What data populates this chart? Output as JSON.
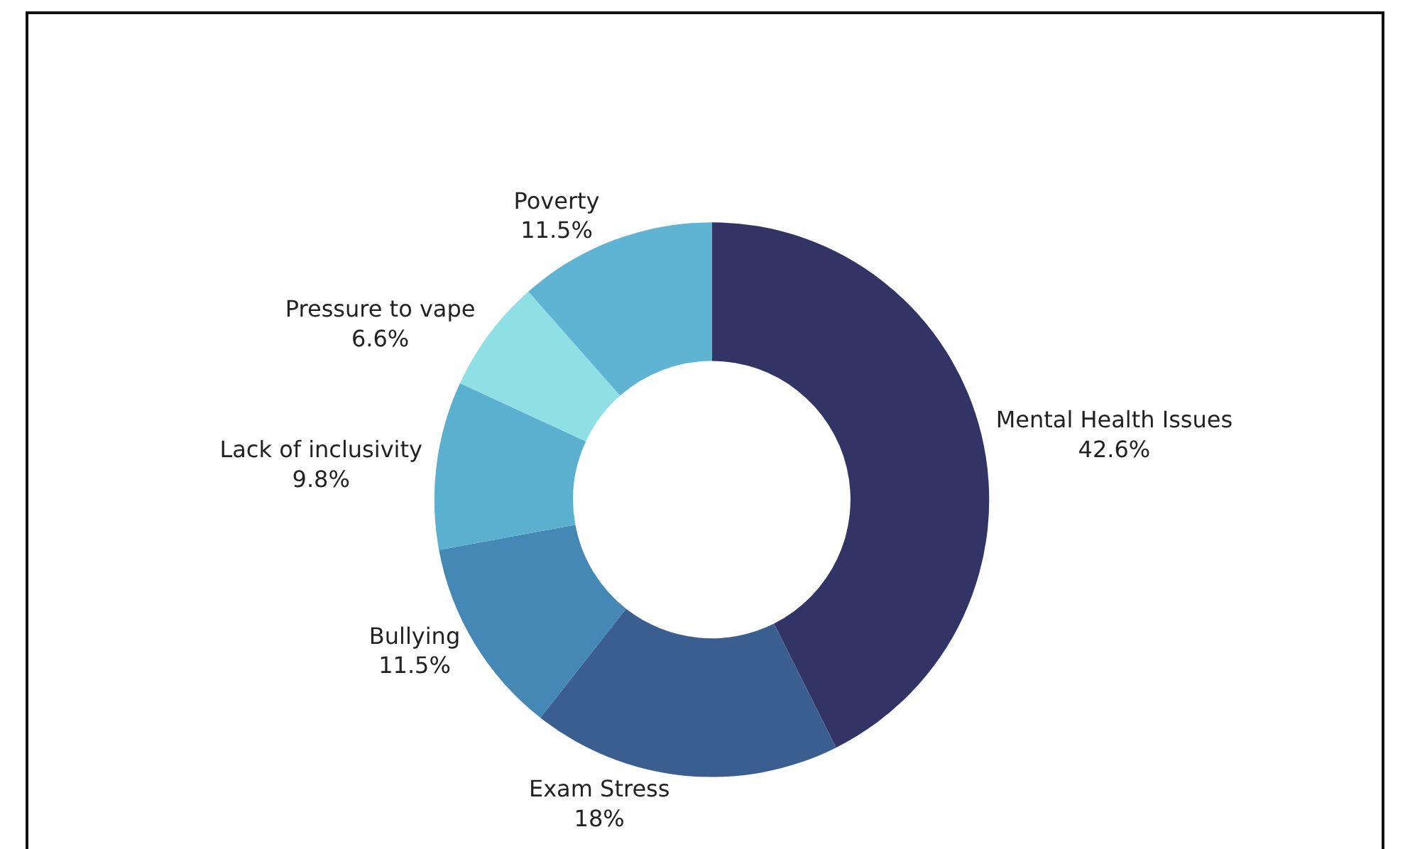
{
  "chart_data": {
    "type": "donut",
    "categories": [
      "Mental Health Issues",
      "Exam Stress",
      "Bullying",
      "Lack of inclusivity",
      "Pressure to vape",
      "Poverty"
    ],
    "values": [
      42.6,
      18,
      11.5,
      9.8,
      6.6,
      11.5
    ],
    "value_labels": [
      "42.6%",
      "18%",
      "11.5%",
      "9.8%",
      "6.6%",
      "11.5%"
    ],
    "colors": [
      "#313465",
      "#3a5e8f",
      "#4688b5",
      "#5bb0d0",
      "#8fe0e5",
      "#60b4d3"
    ],
    "legend": false
  }
}
